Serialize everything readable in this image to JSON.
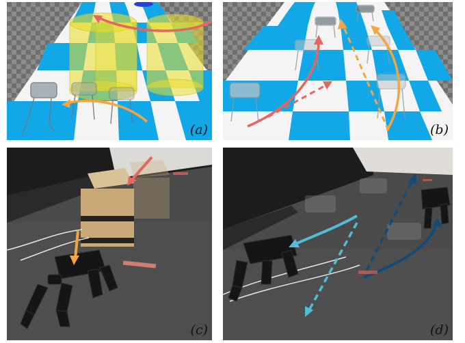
{
  "figure": {
    "panels": [
      {
        "id": "a",
        "label": "(a)"
      },
      {
        "id": "b",
        "label": "(b)"
      },
      {
        "id": "c",
        "label": "(c)"
      },
      {
        "id": "d",
        "label": "(d)"
      }
    ]
  },
  "colors": {
    "checker_blue": "#12a8e8",
    "checker_white": "#f4f4f4",
    "arrow_red": "#e2675f",
    "arrow_orange": "#f2a541",
    "arrow_dark_blue": "#124a78",
    "arrow_cyan": "#52bcd6",
    "cylinder_yellow": "#e9de2a",
    "box_tan": "#c9a877"
  }
}
